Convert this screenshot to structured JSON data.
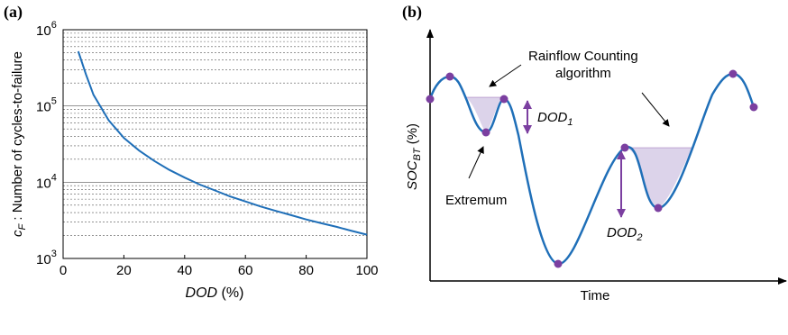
{
  "panels": {
    "a": "(a)",
    "b": "(b)"
  },
  "chart_data": [
    {
      "type": "line",
      "title": "",
      "xlabel": {
        "italic": "DOD",
        "rest": " (%)"
      },
      "ylabel": {
        "italic": "c",
        "sub": "F",
        "rest": " : Number of cycles-to-failure"
      },
      "xlim": [
        0,
        100
      ],
      "ylim": [
        1000,
        1000000
      ],
      "yscale": "log",
      "grid": "y-minor",
      "x_ticks": [
        "0",
        "20",
        "40",
        "60",
        "80",
        "100"
      ],
      "y_ticks": [
        {
          "base": "10",
          "exp": "3",
          "value": 1000
        },
        {
          "base": "10",
          "exp": "4",
          "value": 10000
        },
        {
          "base": "10",
          "exp": "5",
          "value": 100000
        },
        {
          "base": "10",
          "exp": "6",
          "value": 1000000
        }
      ],
      "color": "#1f6fb8",
      "series": [
        {
          "x": [
            5,
            7.5,
            10,
            15,
            20,
            25,
            30,
            35,
            40,
            45,
            50,
            55,
            60,
            65,
            70,
            75,
            80,
            85,
            90,
            95,
            100
          ],
          "values": [
            520000,
            260000,
            140000,
            65000,
            38000,
            26000,
            19000,
            14500,
            11500,
            9300,
            7800,
            6500,
            5600,
            4800,
            4200,
            3700,
            3250,
            2900,
            2600,
            2300,
            2050
          ]
        }
      ]
    },
    {
      "type": "diagram-line",
      "xlabel": "Time",
      "ylabel": {
        "main": "SOC",
        "sub": "BT",
        "rest": " (%)"
      },
      "curve_color": "#1f6fb8",
      "point_color": "#7b3fa0",
      "shade_color": "#dcd3ea",
      "annotations": {
        "rainflow_line1": "Rainflow Counting",
        "rainflow_line2": "algorithm",
        "extremum": "Extremum",
        "dod1": {
          "main": "DOD",
          "sub": "1"
        },
        "dod2": {
          "main": "DOD",
          "sub": "2"
        }
      }
    }
  ]
}
